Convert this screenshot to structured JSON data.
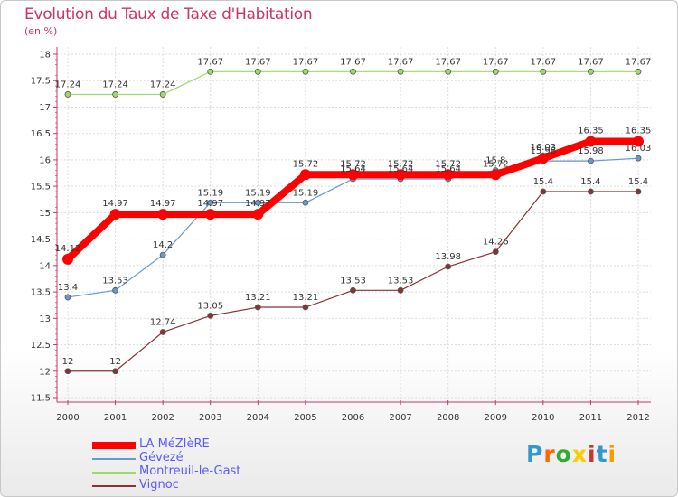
{
  "title": "Evolution du Taux de Taxe d'Habitation",
  "subtitle": "(en %)",
  "brand": {
    "text": "Proxiti",
    "colors": [
      "#3399cc",
      "#ff6600",
      "#33aa33",
      "#ffcc00",
      "#cc3333",
      "#3399cc",
      "#ff9900"
    ]
  },
  "chart_data": {
    "type": "line",
    "x": [
      "2000",
      "2001",
      "2002",
      "2003",
      "2004",
      "2005",
      "2006",
      "2007",
      "2008",
      "2009",
      "2010",
      "2011",
      "2012"
    ],
    "ylim": [
      11.5,
      18
    ],
    "yticks": [
      "11.5",
      "12",
      "12.5",
      "13",
      "13.5",
      "14",
      "14.5",
      "15",
      "15.5",
      "16",
      "16.5",
      "17",
      "17.5",
      "18"
    ],
    "grid": true,
    "legend_position": "bottom-left",
    "series": [
      {
        "name": "LA MéZIèRE",
        "color": "#ff0000",
        "width": 8,
        "values": [
          14.12,
          14.97,
          14.97,
          14.97,
          14.97,
          15.72,
          15.72,
          15.72,
          15.72,
          15.72,
          16.03,
          16.35,
          16.35
        ],
        "labels": [
          "14.12",
          "14.97",
          "14.97",
          "14.97",
          "14.97",
          "15.72",
          "15.72",
          "15.72",
          "15.72",
          "15.72",
          "16.03",
          "16.35",
          "16.35"
        ]
      },
      {
        "name": "Gévezé",
        "color": "#6699cc",
        "width": 1.2,
        "values": [
          13.4,
          13.53,
          14.2,
          15.19,
          15.19,
          15.19,
          15.64,
          15.64,
          15.64,
          15.8,
          15.98,
          15.98,
          16.03
        ],
        "labels": [
          "13.4",
          "13.53",
          "14.2",
          "15.19",
          "15.19",
          "15.19",
          "15.64",
          "15.64",
          "15.64",
          "15.8",
          "15.98",
          "15.98",
          "16.03"
        ]
      },
      {
        "name": "Montreuil-le-Gast",
        "color": "#99dd66",
        "width": 1.2,
        "values": [
          17.24,
          17.24,
          17.24,
          17.67,
          17.67,
          17.67,
          17.67,
          17.67,
          17.67,
          17.67,
          17.67,
          17.67,
          17.67
        ],
        "labels": [
          "17.24",
          "17.24",
          "17.24",
          "17.67",
          "17.67",
          "17.67",
          "17.67",
          "17.67",
          "17.67",
          "17.67",
          "17.67",
          "17.67",
          "17.67"
        ]
      },
      {
        "name": "Vignoc",
        "color": "#883333",
        "width": 1.2,
        "values": [
          12,
          12,
          12.74,
          13.05,
          13.21,
          13.21,
          13.53,
          13.53,
          13.98,
          14.26,
          15.4,
          15.4,
          15.4
        ],
        "labels": [
          "12",
          "12",
          "12.74",
          "13.05",
          "13.21",
          "13.21",
          "13.53",
          "13.53",
          "13.98",
          "14.26",
          "15.4",
          "15.4",
          "15.4"
        ]
      }
    ]
  }
}
